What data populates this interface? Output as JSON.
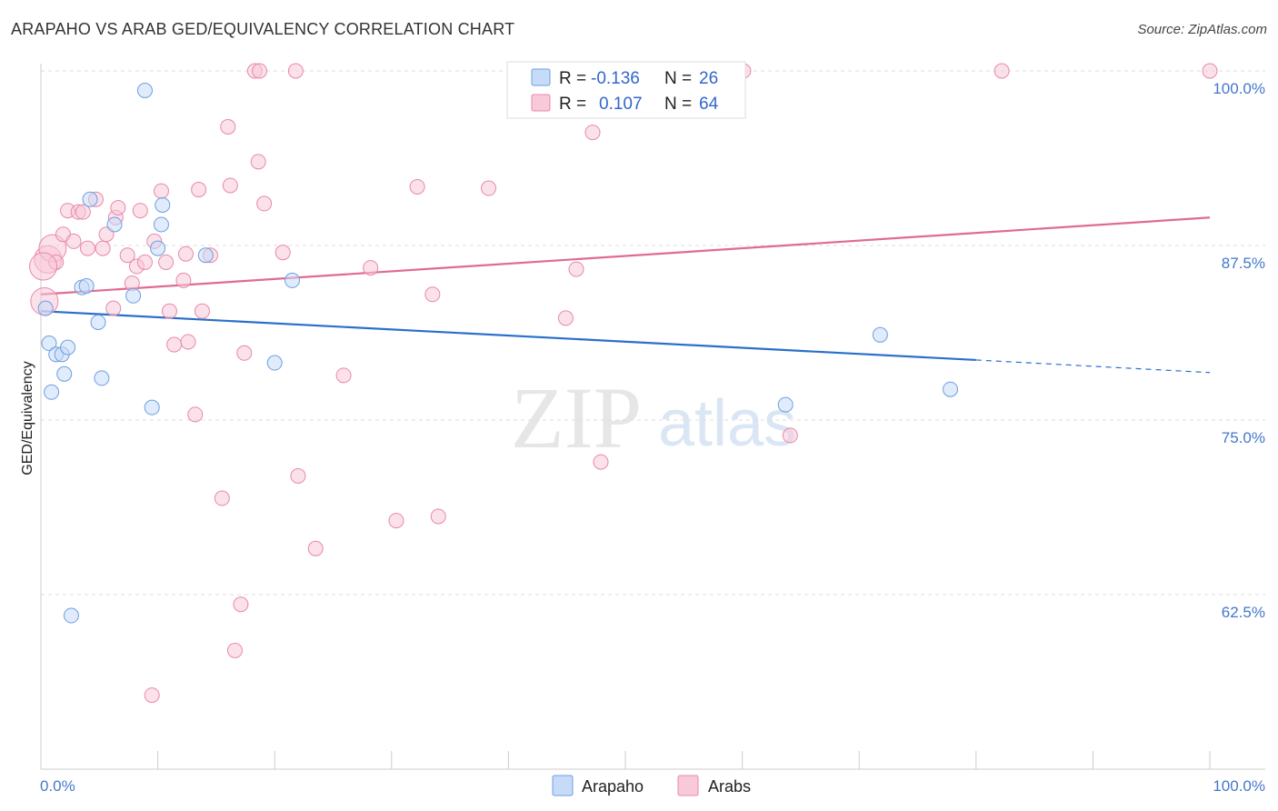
{
  "title": "ARAPAHO VS ARAB GED/EQUIVALENCY CORRELATION CHART",
  "source": "Source: ZipAtlas.com",
  "watermark": {
    "zip": "ZIP",
    "atlas": "atlas"
  },
  "colors": {
    "blue": "#6e9fe0",
    "blue_fill": "#c6dbf7",
    "blue_line": "#2b6fcc",
    "pink": "#e889a8",
    "pink_fill": "#f8c9d8",
    "pink_line": "#e06a95",
    "tick_text": "#4477cc",
    "grid": "#dddddd"
  },
  "legend": {
    "rows": [
      {
        "r_label": "R =",
        "r_value": "-0.136",
        "n_label": "N =",
        "n_value": "26"
      },
      {
        "r_label": "R =",
        "r_value": "0.107",
        "n_label": "N =",
        "n_value": "64"
      }
    ]
  },
  "chart_data": {
    "type": "scatter",
    "title": "ARAPAHO VS ARAB GED/EQUIVALENCY CORRELATION CHART",
    "xlabel": "",
    "ylabel": "GED/Equivalency",
    "xlim": [
      0,
      100
    ],
    "ylim": [
      50,
      102
    ],
    "x_tick_labels": {
      "left": "0.0%",
      "right": "100.0%"
    },
    "y_ticks": [
      {
        "value": 100.0,
        "label": "100.0%"
      },
      {
        "value": 87.5,
        "label": "87.5%"
      },
      {
        "value": 75.0,
        "label": "75.0%"
      },
      {
        "value": 62.5,
        "label": "62.5%"
      }
    ],
    "series": [
      {
        "name": "Arapaho",
        "color": "blue",
        "trend": {
          "x0": 0,
          "y0": 82.8,
          "x1": 80,
          "y1": 79.3,
          "dash_to_x": 100,
          "dash_to_y": 78.4
        },
        "points": [
          [
            0.4,
            83.0
          ],
          [
            0.7,
            80.5
          ],
          [
            0.9,
            77.0
          ],
          [
            1.3,
            79.7
          ],
          [
            1.8,
            79.7
          ],
          [
            2.0,
            78.3
          ],
          [
            2.3,
            80.2
          ],
          [
            2.6,
            61.0
          ],
          [
            3.5,
            84.5
          ],
          [
            3.9,
            84.6
          ],
          [
            4.2,
            90.8
          ],
          [
            4.9,
            82.0
          ],
          [
            5.2,
            78.0
          ],
          [
            6.3,
            89.0
          ],
          [
            7.9,
            83.9
          ],
          [
            8.9,
            98.6
          ],
          [
            9.5,
            75.9
          ],
          [
            10.0,
            87.3
          ],
          [
            10.3,
            89.0
          ],
          [
            10.4,
            90.4
          ],
          [
            14.1,
            86.8
          ],
          [
            20.0,
            79.1
          ],
          [
            21.5,
            85.0
          ],
          [
            63.7,
            76.1
          ],
          [
            71.8,
            81.1
          ],
          [
            77.8,
            77.2
          ]
        ]
      },
      {
        "name": "Arabs",
        "color": "pink",
        "trend": {
          "x0": 0,
          "y0": 84.0,
          "x1": 100,
          "y1": 89.5
        },
        "points": [
          [
            0.3,
            83.5
          ],
          [
            0.6,
            86.5
          ],
          [
            1.0,
            87.3
          ],
          [
            1.3,
            86.3
          ],
          [
            1.9,
            88.3
          ],
          [
            2.3,
            90.0
          ],
          [
            2.8,
            87.8
          ],
          [
            3.2,
            89.9
          ],
          [
            3.6,
            89.9
          ],
          [
            4.0,
            87.3
          ],
          [
            4.7,
            90.8
          ],
          [
            5.3,
            87.3
          ],
          [
            5.6,
            88.3
          ],
          [
            6.2,
            83.0
          ],
          [
            6.4,
            89.5
          ],
          [
            6.6,
            90.2
          ],
          [
            7.4,
            86.8
          ],
          [
            7.8,
            84.8
          ],
          [
            8.2,
            86.0
          ],
          [
            8.5,
            90.0
          ],
          [
            8.9,
            86.3
          ],
          [
            9.5,
            55.3
          ],
          [
            9.7,
            87.8
          ],
          [
            10.3,
            91.4
          ],
          [
            10.7,
            86.3
          ],
          [
            11.0,
            82.8
          ],
          [
            11.4,
            80.4
          ],
          [
            12.2,
            85.0
          ],
          [
            12.4,
            86.9
          ],
          [
            12.6,
            80.6
          ],
          [
            13.2,
            75.4
          ],
          [
            13.5,
            91.5
          ],
          [
            13.8,
            82.8
          ],
          [
            14.5,
            86.8
          ],
          [
            15.5,
            69.4
          ],
          [
            16.0,
            96.0
          ],
          [
            16.2,
            91.8
          ],
          [
            16.6,
            58.5
          ],
          [
            17.1,
            61.8
          ],
          [
            17.4,
            79.8
          ],
          [
            18.3,
            100.0
          ],
          [
            18.6,
            93.5
          ],
          [
            18.7,
            100.0
          ],
          [
            19.1,
            90.5
          ],
          [
            20.7,
            87.0
          ],
          [
            21.8,
            100.0
          ],
          [
            22.0,
            71.0
          ],
          [
            23.5,
            65.8
          ],
          [
            25.9,
            78.2
          ],
          [
            28.2,
            85.9
          ],
          [
            30.4,
            67.8
          ],
          [
            32.2,
            91.7
          ],
          [
            33.5,
            84.0
          ],
          [
            34.0,
            68.1
          ],
          [
            38.3,
            91.6
          ],
          [
            44.9,
            82.3
          ],
          [
            45.8,
            85.8
          ],
          [
            47.2,
            95.6
          ],
          [
            47.9,
            72.0
          ],
          [
            60.1,
            100.0
          ],
          [
            64.1,
            73.9
          ],
          [
            82.2,
            100.0
          ],
          [
            100.0,
            100.0
          ],
          [
            0.2,
            86.0
          ]
        ]
      }
    ],
    "legend_position": "top-center",
    "bottom_legend": [
      "Arapaho",
      "Arabs"
    ]
  }
}
